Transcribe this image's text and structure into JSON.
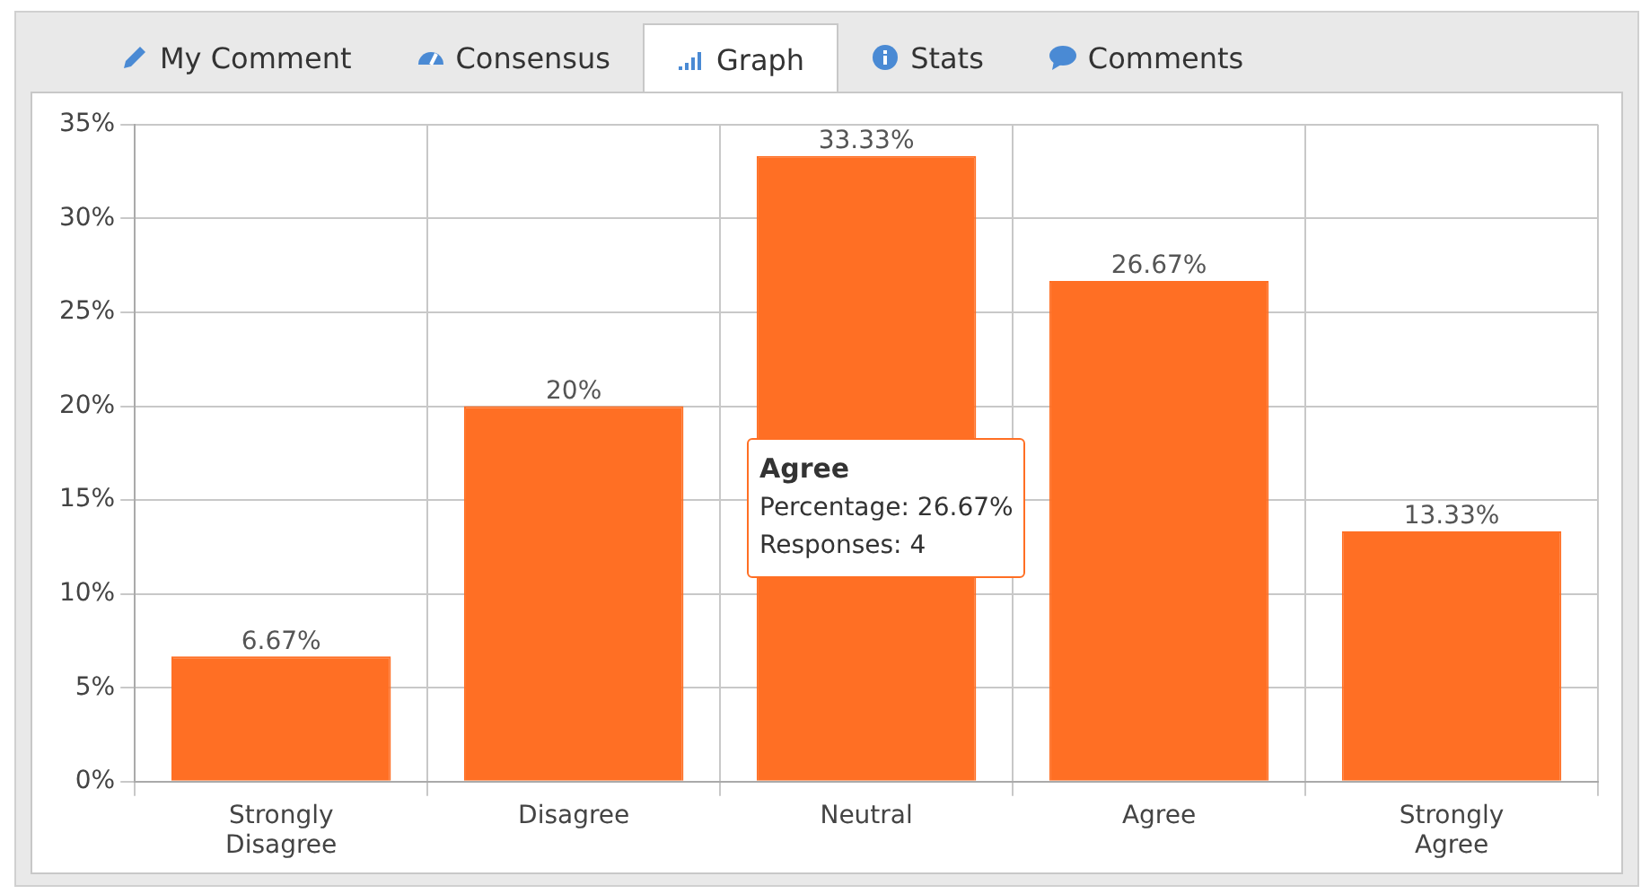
{
  "chart_data": {
    "type": "bar",
    "categories": [
      "Strongly Disagree",
      "Disagree",
      "Neutral",
      "Agree",
      "Strongly Agree"
    ],
    "values": [
      6.67,
      20,
      33.33,
      26.67,
      13.33
    ],
    "value_labels": [
      "6.67%",
      "20%",
      "33.33%",
      "26.67%",
      "13.33%"
    ],
    "color": "#ff6f24",
    "ylim": [
      0,
      35
    ],
    "yticks": [
      {
        "value": 0,
        "label": "0%"
      },
      {
        "value": 5,
        "label": "5%"
      },
      {
        "value": 10,
        "label": "10%"
      },
      {
        "value": 15,
        "label": "15%"
      },
      {
        "value": 20,
        "label": "20%"
      },
      {
        "value": 25,
        "label": "25%"
      },
      {
        "value": 30,
        "label": "30%"
      },
      {
        "value": 35,
        "label": "35%"
      }
    ],
    "grid": true,
    "legend": false,
    "annotations": [
      "My Comment",
      "Consensus",
      "Graph",
      "Stats",
      "Comments",
      "Agree\nPercentage: 26.67%\nResponses: 4"
    ]
  }
}
